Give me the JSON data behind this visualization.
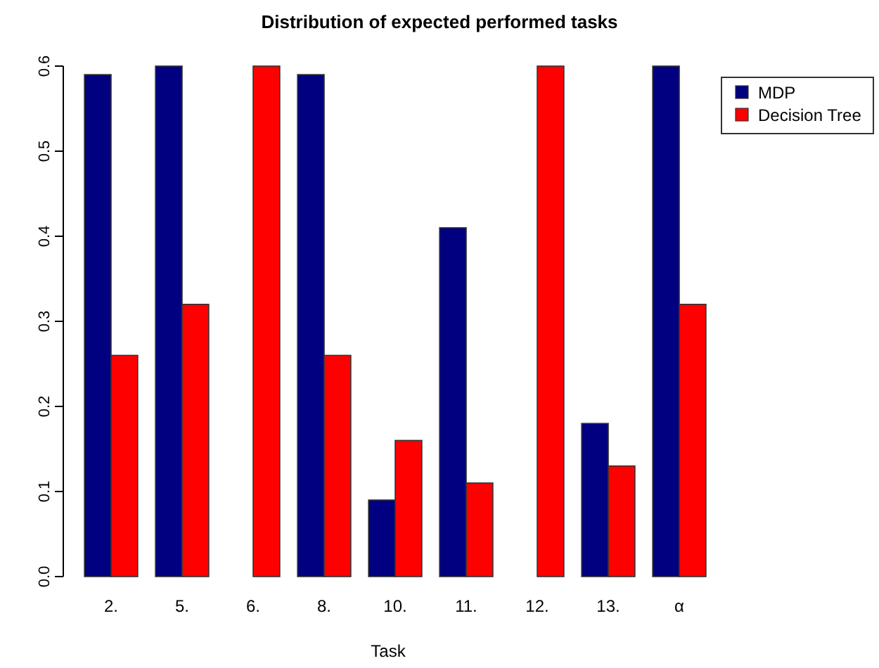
{
  "chart_data": {
    "type": "bar",
    "title": "Distribution of expected performed tasks",
    "xlabel": "Task",
    "categories": [
      "2.",
      "5.",
      "6.",
      "8.",
      "10.",
      "11.",
      "12.",
      "13.",
      "α"
    ],
    "series": [
      {
        "name": "MDP",
        "color": "#000080",
        "values": [
          0.59,
          0.6,
          0,
          0.59,
          0.09,
          0.41,
          0,
          0.18,
          0.6
        ]
      },
      {
        "name": "Decision Tree",
        "color": "#ff0000",
        "values": [
          0.26,
          0.32,
          0.6,
          0.26,
          0.16,
          0.11,
          0.6,
          0.13,
          0.32
        ]
      }
    ],
    "ylim": [
      0,
      0.6
    ],
    "yticks": [
      {
        "value": 0,
        "label": "0.0"
      },
      0.1,
      0.2,
      0.3,
      0.4,
      0.5,
      0.6
    ],
    "grid": false,
    "legend": "top right"
  }
}
